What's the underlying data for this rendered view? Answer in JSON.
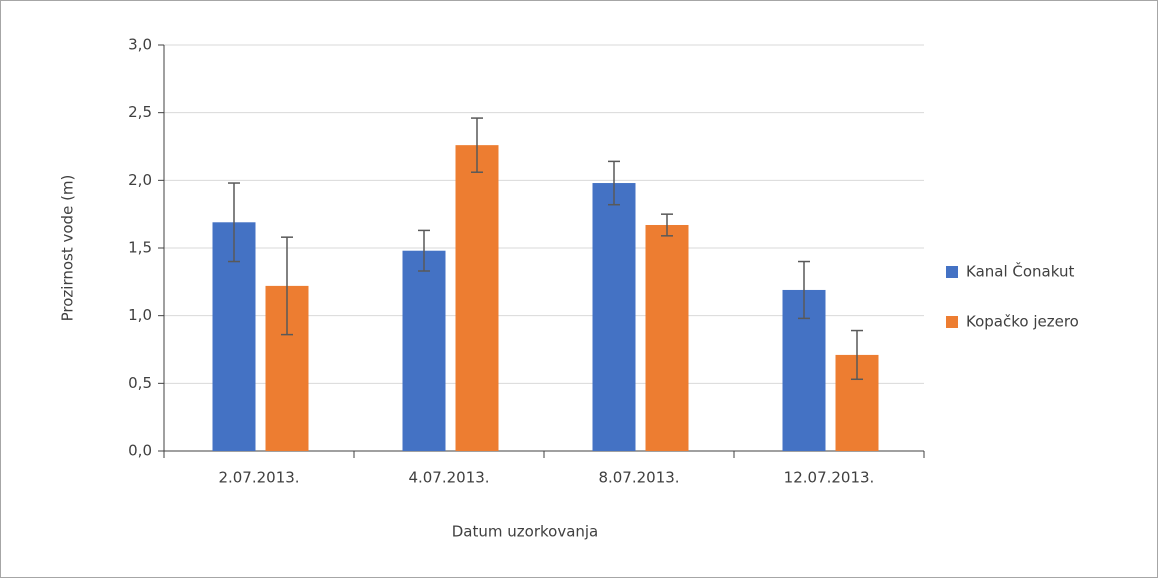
{
  "chart_data": {
    "type": "bar",
    "x_label": "Datum uzorkovanja",
    "y_label": "Prozirnost vode (m)",
    "categories": [
      "2.07.2013.",
      "4.07.2013.",
      "8.07.2013.",
      "12.07.2013."
    ],
    "series": [
      {
        "name": "Kanal Čonakut",
        "color": "#4472c4",
        "values": [
          1.69,
          1.48,
          1.98,
          1.19
        ],
        "errors": [
          0.29,
          0.15,
          0.16,
          0.21
        ]
      },
      {
        "name": "Kopačko jezero",
        "color": "#ed7d31",
        "values": [
          1.22,
          2.26,
          1.67,
          0.71
        ],
        "errors": [
          0.36,
          0.2,
          0.08,
          0.18
        ]
      }
    ],
    "ylim": [
      0,
      3
    ],
    "yticks": [
      {
        "value": 0,
        "label": "0,0"
      },
      {
        "value": 0.5,
        "label": "0,5"
      },
      {
        "value": 1,
        "label": "1,0"
      },
      {
        "value": 1.5,
        "label": "1,5"
      },
      {
        "value": 2,
        "label": "2,0"
      },
      {
        "value": 2.5,
        "label": "2,5"
      },
      {
        "value": 3,
        "label": "3,0"
      }
    ],
    "grid": true,
    "legend": "right"
  }
}
